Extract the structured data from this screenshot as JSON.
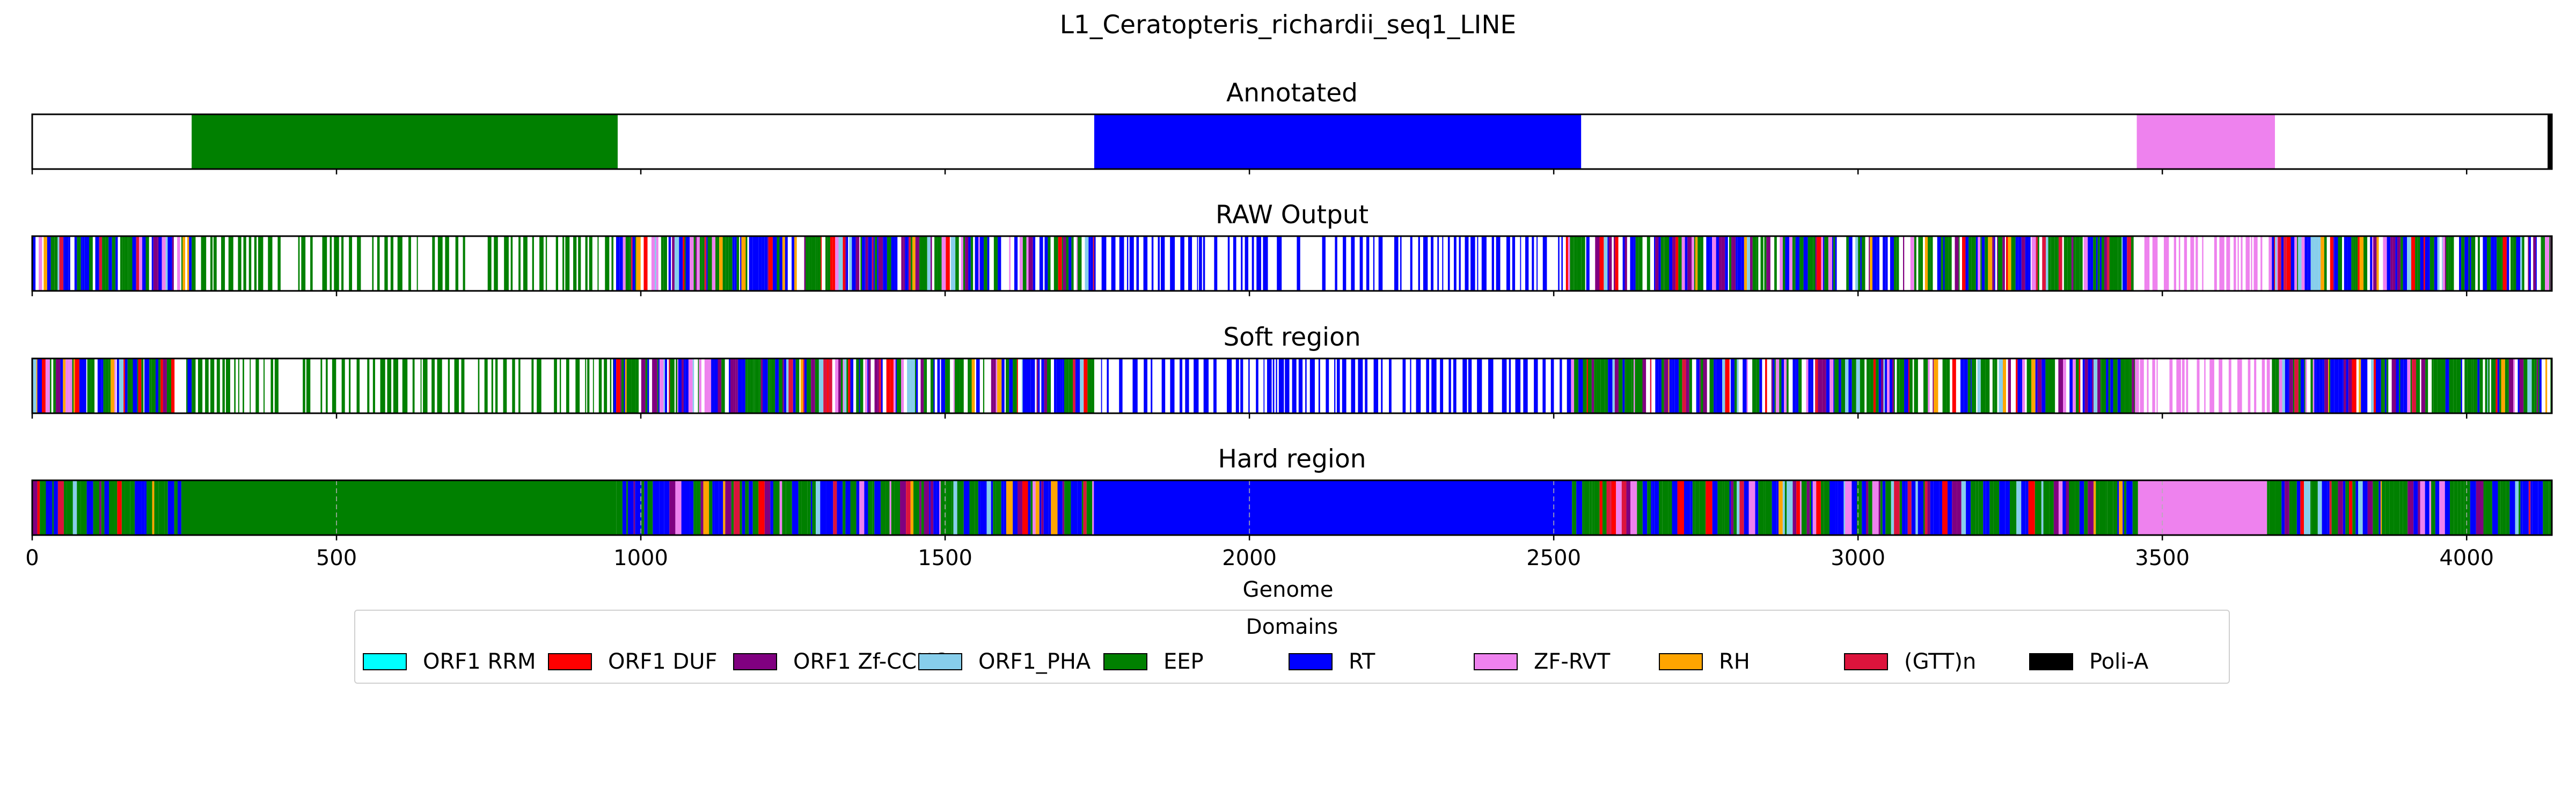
{
  "chart_data": {
    "type": "genome-track",
    "title": "L1_Ceratopteris_richardii_seq1_LINE",
    "xlabel": "Genome",
    "xlim": [
      0,
      4140
    ],
    "x_ticks": [
      0,
      500,
      1000,
      1500,
      2000,
      2500,
      3000,
      3500,
      4000
    ],
    "x_tick_labels": [
      "0",
      "500",
      "1000",
      "1500",
      "2000",
      "2500",
      "3000",
      "3500",
      "4000"
    ],
    "grid": "vertical dashed on Hard region",
    "legend_title": "Domains",
    "legend_placement": "below center",
    "domains": [
      {
        "name": "ORF1 RRM",
        "color": "#00ffff"
      },
      {
        "name": "ORF1 DUF",
        "color": "#ff0000"
      },
      {
        "name": "ORF1 Zf-CCHC",
        "color": "#800080"
      },
      {
        "name": "ORF1_PHA",
        "color": "#87ceeb"
      },
      {
        "name": "EEP",
        "color": "#008000"
      },
      {
        "name": "RT",
        "color": "#0000ff"
      },
      {
        "name": "ZF-RVT",
        "color": "#ee82ee"
      },
      {
        "name": "RH",
        "color": "#ffa500"
      },
      {
        "name": "(GTT)n",
        "color": "#dc143c"
      },
      {
        "name": "Poli-A",
        "color": "#000000"
      }
    ],
    "tracks": [
      {
        "title": "Annotated",
        "segments": [
          {
            "domain": "EEP",
            "start": 262,
            "end": 962
          },
          {
            "domain": "RT",
            "start": 1745,
            "end": 2545
          },
          {
            "domain": "ZF-RVT",
            "start": 3458,
            "end": 3685
          },
          {
            "domain": "Poli-A",
            "start": 4133,
            "end": 4140
          }
        ]
      },
      {
        "title": "RAW Output",
        "segments": [
          {
            "domain": "mixed",
            "start": 0,
            "end": 262
          },
          {
            "domain": "EEP",
            "start": 262,
            "end": 955,
            "sparse": true
          },
          {
            "domain": "mixed",
            "start": 955,
            "end": 1745
          },
          {
            "domain": "RT",
            "start": 1745,
            "end": 2520,
            "sparse": true
          },
          {
            "domain": "mixed",
            "start": 2520,
            "end": 3455
          },
          {
            "domain": "ZF-RVT",
            "start": 3455,
            "end": 3680,
            "sparse": true
          },
          {
            "domain": "mixed",
            "start": 3680,
            "end": 4140
          }
        ]
      },
      {
        "title": "Soft region",
        "segments": [
          {
            "domain": "mixed",
            "start": 0,
            "end": 262
          },
          {
            "domain": "EEP",
            "start": 262,
            "end": 955,
            "sparse": true
          },
          {
            "domain": "mixed",
            "start": 955,
            "end": 1745
          },
          {
            "domain": "RT",
            "start": 1745,
            "end": 2520,
            "sparse": true
          },
          {
            "domain": "mixed",
            "start": 2520,
            "end": 3455
          },
          {
            "domain": "ZF-RVT",
            "start": 3455,
            "end": 3680,
            "sparse": true
          },
          {
            "domain": "mixed",
            "start": 3680,
            "end": 4140
          }
        ]
      },
      {
        "title": "Hard region",
        "segments": [
          {
            "domain": "mixed",
            "start": 0,
            "end": 245
          },
          {
            "domain": "EEP",
            "start": 245,
            "end": 960
          },
          {
            "domain": "mixed",
            "start": 960,
            "end": 1745
          },
          {
            "domain": "RT",
            "start": 1745,
            "end": 2530
          },
          {
            "domain": "mixed",
            "start": 2530,
            "end": 3460
          },
          {
            "domain": "ZF-RVT",
            "start": 3460,
            "end": 3672
          },
          {
            "domain": "mixed",
            "start": 3672,
            "end": 4140
          }
        ]
      }
    ]
  }
}
